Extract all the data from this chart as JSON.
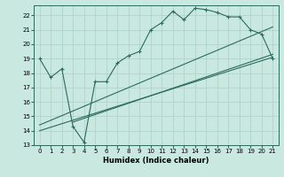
{
  "xlabel": "Humidex (Indice chaleur)",
  "background_color": "#c8e8e0",
  "grid_color": "#b0d4cc",
  "line_color": "#2d6b5e",
  "xlim": [
    -0.5,
    21.5
  ],
  "ylim": [
    13,
    22.7
  ],
  "xticks": [
    0,
    1,
    2,
    3,
    4,
    5,
    6,
    7,
    8,
    9,
    10,
    11,
    12,
    13,
    14,
    15,
    16,
    17,
    18,
    19,
    20,
    21
  ],
  "yticks": [
    13,
    14,
    15,
    16,
    17,
    18,
    19,
    20,
    21,
    22
  ],
  "main_line_x": [
    0,
    1,
    2,
    3,
    4,
    5,
    6,
    7,
    8,
    9,
    10,
    11,
    12,
    13,
    14,
    15,
    16,
    17,
    18,
    19,
    20,
    21
  ],
  "main_line_y": [
    19.0,
    17.7,
    18.3,
    14.3,
    13.2,
    17.4,
    17.4,
    18.7,
    19.2,
    19.5,
    21.0,
    21.5,
    22.3,
    21.7,
    22.5,
    22.4,
    22.2,
    21.9,
    21.9,
    21.0,
    20.7,
    19.0
  ],
  "line2_x": [
    0,
    21
  ],
  "line2_y": [
    14.0,
    19.1
  ],
  "line3_x": [
    0,
    21
  ],
  "line3_y": [
    14.4,
    21.2
  ],
  "line4_x": [
    3,
    21
  ],
  "line4_y": [
    14.6,
    19.3
  ]
}
